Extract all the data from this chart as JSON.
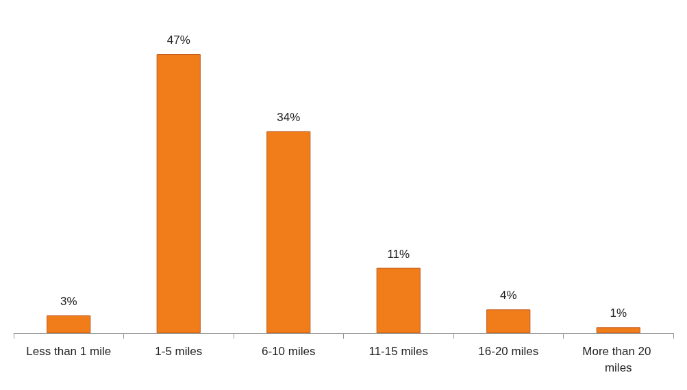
{
  "chart_data": {
    "type": "bar",
    "categories": [
      "Less than 1 mile",
      "1-5 miles",
      "6-10 miles",
      "11-15 miles",
      "16-20 miles",
      "More than 20 miles"
    ],
    "values": [
      3,
      47,
      34,
      11,
      4,
      1
    ],
    "color": "#f07d1a",
    "data_labels": true,
    "value_labels": [
      "3%",
      "47%",
      "34%",
      "11%",
      "4%",
      "1%"
    ]
  }
}
